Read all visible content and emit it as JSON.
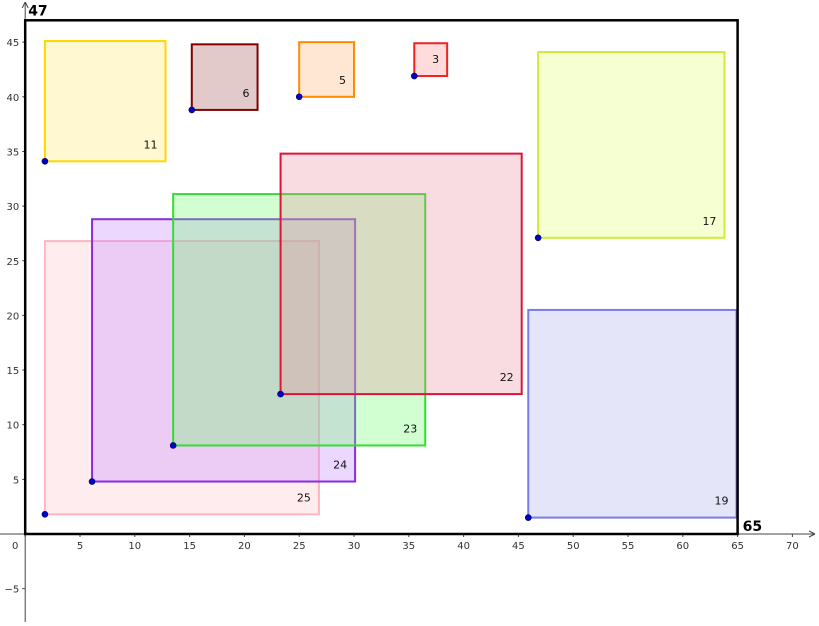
{
  "chart_data": {
    "type": "geometry",
    "xlim": [
      -1,
      72
    ],
    "ylim": [
      -8,
      48
    ],
    "x_ticks": [
      0,
      5,
      10,
      15,
      20,
      25,
      30,
      35,
      40,
      45,
      50,
      55,
      60,
      65,
      70
    ],
    "y_ticks": [
      -5,
      5,
      10,
      15,
      20,
      25,
      30,
      35,
      40,
      45
    ],
    "container": {
      "width": 65,
      "height": 47,
      "width_label": "65",
      "height_label": "47"
    },
    "squares": [
      {
        "label": "25",
        "x": 1.8,
        "y": 1.8,
        "size": 25,
        "stroke": "#ffb6c1",
        "fill": "#ffc0cb"
      },
      {
        "label": "24",
        "x": 6.1,
        "y": 4.8,
        "size": 24,
        "stroke": "#8a2be2",
        "fill": "#bf7fff"
      },
      {
        "label": "23",
        "x": 13.5,
        "y": 8.1,
        "size": 23,
        "stroke": "#33dd33",
        "fill": "#66ff66"
      },
      {
        "label": "22",
        "x": 23.3,
        "y": 12.8,
        "size": 22,
        "stroke": "#dc143c",
        "fill": "#e88a9a"
      },
      {
        "label": "19",
        "x": 45.9,
        "y": 1.5,
        "size": 19,
        "stroke": "#7b7be8",
        "fill": "#a8a8f0"
      },
      {
        "label": "17",
        "x": 46.8,
        "y": 27.1,
        "size": 17,
        "stroke": "#ccee33",
        "fill": "#ddff66"
      },
      {
        "label": "11",
        "x": 1.8,
        "y": 34.1,
        "size": 11,
        "stroke": "#ffd700",
        "fill": "#ffe866"
      },
      {
        "label": "6",
        "x": 15.2,
        "y": 38.8,
        "size": 6,
        "stroke": "#800000",
        "fill": "#a05050"
      },
      {
        "label": "5",
        "x": 25.0,
        "y": 40.0,
        "size": 5,
        "stroke": "#ff8c00",
        "fill": "#ffb070"
      },
      {
        "label": "3",
        "x": 35.5,
        "y": 41.9,
        "size": 3,
        "stroke": "#ee2222",
        "fill": "#ff8888"
      }
    ],
    "point_color": "#0000cc"
  }
}
